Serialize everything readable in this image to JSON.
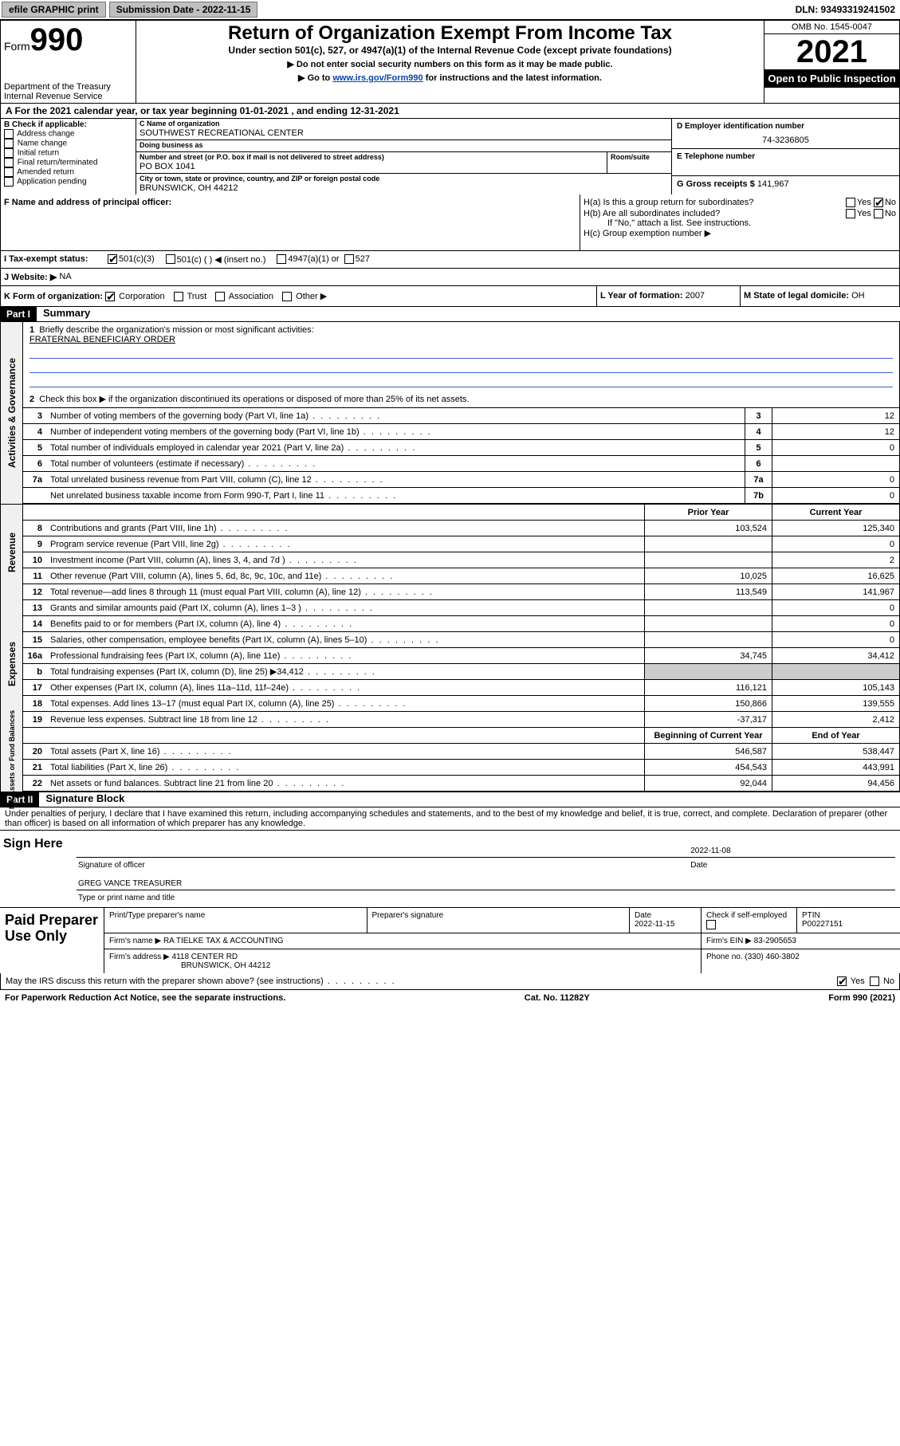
{
  "topbar": {
    "efile": "efile GRAPHIC print",
    "submission_label": "Submission Date - 2022-11-15",
    "dln": "DLN: 93493319241502"
  },
  "header": {
    "form_prefix": "Form",
    "form_num": "990",
    "dept": "Department of the Treasury",
    "irs": "Internal Revenue Service",
    "title": "Return of Organization Exempt From Income Tax",
    "sub1": "Under section 501(c), 527, or 4947(a)(1) of the Internal Revenue Code (except private foundations)",
    "sub2": "▶ Do not enter social security numbers on this form as it may be made public.",
    "sub3_pre": "▶ Go to ",
    "sub3_link": "www.irs.gov/Form990",
    "sub3_post": " for instructions and the latest information.",
    "omb": "OMB No. 1545-0047",
    "year": "2021",
    "inspect": "Open to Public Inspection"
  },
  "period": {
    "text": "A  For the 2021 calendar year, or tax year beginning 01-01-2021    , and ending 12-31-2021"
  },
  "boxB": {
    "header": "B Check if applicable:",
    "opts": [
      "Address change",
      "Name change",
      "Initial return",
      "Final return/terminated",
      "Amended return",
      "Application pending"
    ]
  },
  "boxC": {
    "name_label": "C Name of organization",
    "name": "SOUTHWEST RECREATIONAL CENTER",
    "dba_label": "Doing business as",
    "dba": "",
    "addr_label": "Number and street (or P.O. box if mail is not delivered to street address)",
    "room_label": "Room/suite",
    "addr": "PO BOX 1041",
    "city_label": "City or town, state or province, country, and ZIP or foreign postal code",
    "city": "BRUNSWICK, OH  44212"
  },
  "boxD": {
    "label": "D Employer identification number",
    "value": "74-3236805"
  },
  "boxE": {
    "label": "E Telephone number",
    "value": ""
  },
  "boxG": {
    "label": "G Gross receipts $",
    "value": "141,967"
  },
  "boxF": {
    "label": "F  Name and address of principal officer:",
    "value": ""
  },
  "boxH": {
    "ha": "H(a)  Is this a group return for subordinates?",
    "hb": "H(b)  Are all subordinates included?",
    "hb_note": "If \"No,\" attach a list. See instructions.",
    "hc": "H(c)  Group exemption number ▶",
    "yes": "Yes",
    "no": "No"
  },
  "rowI": {
    "label": "I    Tax-exempt status:",
    "o1": "501(c)(3)",
    "o2": "501(c) (  ) ◀ (insert no.)",
    "o3": "4947(a)(1) or",
    "o4": "527"
  },
  "rowJ": {
    "label": "J   Website: ▶",
    "value": "NA"
  },
  "rowK": {
    "label": "K Form of organization:",
    "o1": "Corporation",
    "o2": "Trust",
    "o3": "Association",
    "o4": "Other ▶"
  },
  "rowL": {
    "label": "L Year of formation:",
    "value": "2007"
  },
  "rowM": {
    "label": "M State of legal domicile:",
    "value": "OH"
  },
  "part1": {
    "hdr": "Part I",
    "title": "Summary",
    "l1": "Briefly describe the organization's mission or most significant activities:",
    "mission": "FRATERNAL BENEFICIARY ORDER",
    "l2": "Check this box ▶        if the organization discontinued its operations or disposed of more than 25% of its net assets.",
    "lines_gov": [
      {
        "n": "3",
        "d": "Number of voting members of the governing body (Part VI, line 1a)",
        "box": "3",
        "v2": "12"
      },
      {
        "n": "4",
        "d": "Number of independent voting members of the governing body (Part VI, line 1b)",
        "box": "4",
        "v2": "12"
      },
      {
        "n": "5",
        "d": "Total number of individuals employed in calendar year 2021 (Part V, line 2a)",
        "box": "5",
        "v2": "0"
      },
      {
        "n": "6",
        "d": "Total number of volunteers (estimate if necessary)",
        "box": "6",
        "v2": ""
      },
      {
        "n": "7a",
        "d": "Total unrelated business revenue from Part VIII, column (C), line 12",
        "box": "7a",
        "v2": "0"
      },
      {
        "n": "",
        "d": "Net unrelated business taxable income from Form 990-T, Part I, line 11",
        "box": "7b",
        "v2": "0"
      }
    ],
    "col_hdr": {
      "prior": "Prior Year",
      "current": "Current Year"
    },
    "lines_rev": [
      {
        "n": "8",
        "d": "Contributions and grants (Part VIII, line 1h)",
        "v1": "103,524",
        "v2": "125,340"
      },
      {
        "n": "9",
        "d": "Program service revenue (Part VIII, line 2g)",
        "v1": "",
        "v2": "0"
      },
      {
        "n": "10",
        "d": "Investment income (Part VIII, column (A), lines 3, 4, and 7d )",
        "v1": "",
        "v2": "2"
      },
      {
        "n": "11",
        "d": "Other revenue (Part VIII, column (A), lines 5, 6d, 8c, 9c, 10c, and 11e)",
        "v1": "10,025",
        "v2": "16,625"
      },
      {
        "n": "12",
        "d": "Total revenue—add lines 8 through 11 (must equal Part VIII, column (A), line 12)",
        "v1": "113,549",
        "v2": "141,967"
      }
    ],
    "lines_exp": [
      {
        "n": "13",
        "d": "Grants and similar amounts paid (Part IX, column (A), lines 1–3 )",
        "v1": "",
        "v2": "0"
      },
      {
        "n": "14",
        "d": "Benefits paid to or for members (Part IX, column (A), line 4)",
        "v1": "",
        "v2": "0"
      },
      {
        "n": "15",
        "d": "Salaries, other compensation, employee benefits (Part IX, column (A), lines 5–10)",
        "v1": "",
        "v2": "0"
      },
      {
        "n": "16a",
        "d": "Professional fundraising fees (Part IX, column (A), line 11e)",
        "v1": "34,745",
        "v2": "34,412"
      },
      {
        "n": "b",
        "d": "Total fundraising expenses (Part IX, column (D), line 25) ▶34,412",
        "v1": "__shade__",
        "v2": "__shade__"
      },
      {
        "n": "17",
        "d": "Other expenses (Part IX, column (A), lines 11a–11d, 11f–24e)",
        "v1": "116,121",
        "v2": "105,143"
      },
      {
        "n": "18",
        "d": "Total expenses. Add lines 13–17 (must equal Part IX, column (A), line 25)",
        "v1": "150,866",
        "v2": "139,555"
      },
      {
        "n": "19",
        "d": "Revenue less expenses. Subtract line 18 from line 12",
        "v1": "-37,317",
        "v2": "2,412"
      }
    ],
    "col_hdr2": {
      "begin": "Beginning of Current Year",
      "end": "End of Year"
    },
    "lines_na": [
      {
        "n": "20",
        "d": "Total assets (Part X, line 16)",
        "v1": "546,587",
        "v2": "538,447"
      },
      {
        "n": "21",
        "d": "Total liabilities (Part X, line 26)",
        "v1": "454,543",
        "v2": "443,991"
      },
      {
        "n": "22",
        "d": "Net assets or fund balances. Subtract line 21 from line 20",
        "v1": "92,044",
        "v2": "94,456"
      }
    ],
    "side_gov": "Activities & Governance",
    "side_rev": "Revenue",
    "side_exp": "Expenses",
    "side_na": "Net Assets or Fund Balances"
  },
  "part2": {
    "hdr": "Part II",
    "title": "Signature Block",
    "intro": "Under penalties of perjury, I declare that I have examined this return, including accompanying schedules and statements, and to the best of my knowledge and belief, it is true, correct, and complete. Declaration of preparer (other than officer) is based on all information of which preparer has any knowledge.",
    "sign_here": "Sign Here",
    "sig_officer": "Signature of officer",
    "sig_date": "2022-11-08",
    "date_label": "Date",
    "officer_name": "GREG VANCE  TREASURER",
    "type_name": "Type or print name and title",
    "paid": "Paid Preparer Use Only",
    "prep_name_label": "Print/Type preparer's name",
    "prep_sig_label": "Preparer's signature",
    "prep_date_label": "Date",
    "prep_date": "2022-11-15",
    "check_self": "Check          if self-employed",
    "ptin_label": "PTIN",
    "ptin": "P00227151",
    "firm_name_label": "Firm's name     ▶",
    "firm_name": "RA TIELKE TAX & ACCOUNTING",
    "firm_ein_label": "Firm's EIN ▶",
    "firm_ein": "83-2905653",
    "firm_addr_label": "Firm's address ▶",
    "firm_addr1": "4118 CENTER RD",
    "firm_addr2": "BRUNSWICK, OH  44212",
    "phone_label": "Phone no.",
    "phone": "(330) 460-3802",
    "discuss": "May the IRS discuss this return with the preparer shown above? (see instructions)",
    "yes": "Yes",
    "no": "No"
  },
  "footer": {
    "left": "For Paperwork Reduction Act Notice, see the separate instructions.",
    "mid": "Cat. No. 11282Y",
    "right": "Form 990 (2021)"
  }
}
